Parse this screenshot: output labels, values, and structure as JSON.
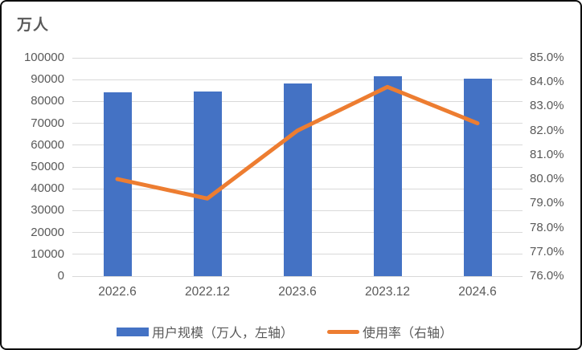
{
  "card": {
    "background_color": "#ffffff",
    "border_color": "#0d0d0d"
  },
  "colors": {
    "bar_blue": "#4472c4",
    "line_orange": "#ed7d31",
    "text_gray": "#595959",
    "gridline_gray": "#d9d9d9"
  },
  "chart_data": {
    "type": "bar",
    "subtype": "combo-bar-line",
    "title": "万人",
    "categories": [
      "2022.6",
      "2022.12",
      "2023.6",
      "2023.12",
      "2024.6"
    ],
    "series": [
      {
        "name": "用户规模（万人，左轴）",
        "type": "bar",
        "axis": "left",
        "color": "#4472c4",
        "values": [
          84100,
          84500,
          88400,
          91500,
          90500
        ]
      },
      {
        "name": "使用率（右轴）",
        "type": "line",
        "axis": "right",
        "color": "#ed7d31",
        "values": [
          80.0,
          79.2,
          82.0,
          83.8,
          82.3
        ]
      }
    ],
    "left_axis": {
      "title": "万人",
      "min": 0,
      "max": 100000,
      "step": 10000,
      "tick_labels": [
        "100000",
        "90000",
        "80000",
        "70000",
        "60000",
        "50000",
        "40000",
        "30000",
        "20000",
        "10000",
        "0"
      ]
    },
    "right_axis": {
      "min": 76,
      "max": 85,
      "step": 1,
      "tick_labels": [
        "85.0%",
        "84.0%",
        "83.0%",
        "82.0%",
        "81.0%",
        "80.0%",
        "79.0%",
        "78.0%",
        "77.0%",
        "76.0%"
      ]
    },
    "grid": true,
    "legend_position": "bottom"
  }
}
